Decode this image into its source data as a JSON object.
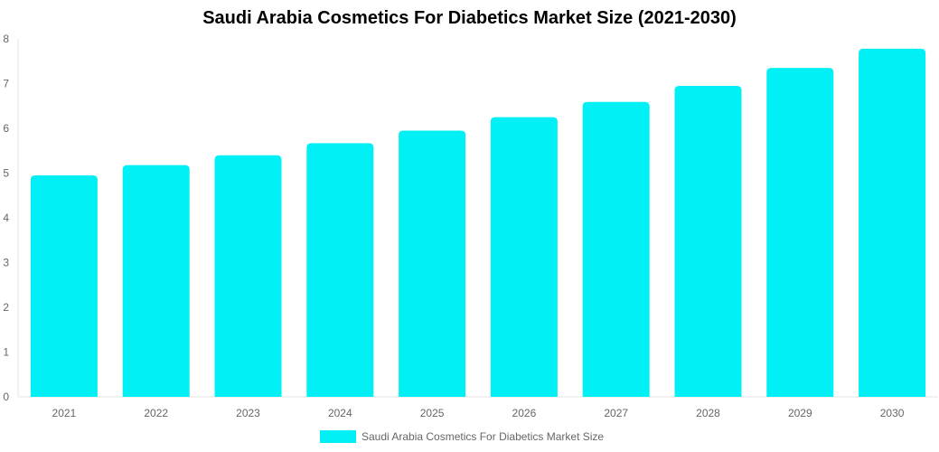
{
  "chart_data": {
    "type": "bar",
    "title": "Saudi Arabia Cosmetics For Diabetics Market Size (2021-2030)",
    "categories": [
      "2021",
      "2022",
      "2023",
      "2024",
      "2025",
      "2026",
      "2027",
      "2028",
      "2029",
      "2030"
    ],
    "series": [
      {
        "name": "Saudi Arabia Cosmetics For Diabetics Market Size",
        "values": [
          4.95,
          5.18,
          5.4,
          5.67,
          5.95,
          6.25,
          6.59,
          6.95,
          7.35,
          7.78
        ],
        "color": "#00f0f5"
      }
    ],
    "xlabel": "",
    "ylabel": "",
    "ylim": [
      0,
      8
    ],
    "yticks": [
      0,
      1,
      2,
      3,
      4,
      5,
      6,
      7,
      8
    ],
    "grid": false,
    "legend_position": "bottom"
  }
}
